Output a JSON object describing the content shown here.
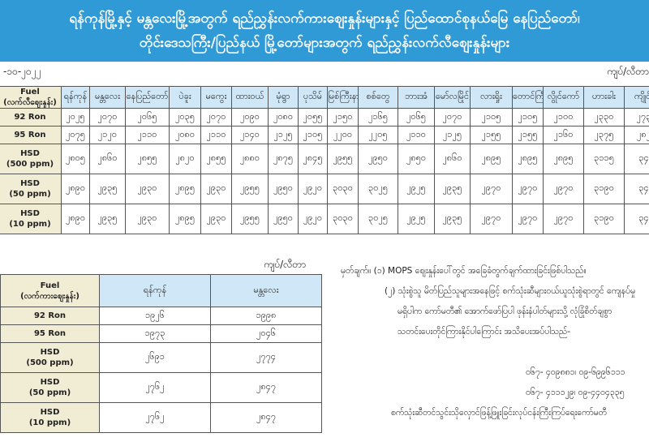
{
  "header": {
    "line1": "ရန်ကုန်မြို့နှင့် မန္တလေးမြို့အတွက် ရည်ညွှန်းလက်ကားစျေးနှုန်းများနှင့် ပြည်ထောင်စုနယ်မြေ နေပြည်တော်၊",
    "line2": "တိုင်းဒေသကြီး/ပြည်နယ် မြို့တော်များအတွက် ရည်ညွှန်းလက်လီစျေးနှုန်းများ"
  },
  "date": "-၁၀-၂၀၂၂",
  "unit": "ကျပ်/လီတာ",
  "retail": {
    "corner": {
      "l1": "Fuel",
      "l2": "(လက်လီစျေးနှုန်း)"
    },
    "cities": [
      "ရန်ကုန်",
      "မန္တလေး",
      "နေပြည်တော်",
      "ပဲခူး",
      "မကွေး",
      "ထားဝယ်",
      "မုံရွာ",
      "ပုသိမ်",
      "မြစ်ကြီးနား",
      "စစ်တွေ",
      "ဘားအံ",
      "မော်လမြိုင်",
      "လားရှိုး",
      "တောင်ကြီး",
      "လွိုင်ကော်",
      "ဟားခါး",
      "ကျိုင်း"
    ],
    "rows": [
      {
        "l1": "92 Ron",
        "l2": "",
        "v": [
          "၂၀၂၅",
          "၂၀၇၀",
          "၂၀၆၅",
          "၂၀၃၅",
          "၂၀၇၀",
          "၂၀၉၀",
          "၂၀၈၀",
          "၂၀၅၅",
          "၂၁၅၀",
          "၂၁၆၅",
          "၂၀၆၅",
          "၂၀၇၀",
          "၂၁၀၅",
          "၂၁၀၅",
          "၂၁၀၀",
          "၂၃၃၀",
          "၂၇၃"
        ]
      },
      {
        "l1": "95 Ron",
        "l2": "",
        "v": [
          "၂၀၇၅",
          "၂၁၂၀",
          "၂၁၁၀",
          "၂၀၈၀",
          "၂၁၁၀",
          "၂၁၄၀",
          "၂၁၂၅",
          "၂၁၀၅",
          "၂၂၀၀",
          "၂၂၀၅",
          "၂၁၁၀",
          "၂၁၂၅",
          "၂၁၅၅",
          "၂၁၅၅",
          "၂၁၆၀",
          "၂၃၇၅",
          "၂၈၂"
        ]
      },
      {
        "l1": "HSD",
        "l2": "(500 ppm)",
        "v": [
          "၂၈၀၅",
          "၂၈၆၀",
          "၂၈၅၅",
          "၂၈၂၀",
          "၂၈၅၅",
          "၂၈၈၀",
          "၂၈၇၅",
          "၂၈၄၅",
          "၂၉၅၅",
          "၂၉၅၀",
          "၂၈၅၀",
          "၂၈၆၀",
          "၂၈၉၅",
          "၂၈၉၅",
          "၂၈၉၅",
          "၃၁၁၅",
          "၃၄"
        ]
      },
      {
        "l1": "HSD",
        "l2": "(50 ppm)",
        "v": [
          "၂၈၉၀",
          "၂၉၃၅",
          "၂၉၃၀",
          "၂၈၉၅",
          "၂၉၃၀",
          "၂၉၅၅",
          "၂၉၅၀",
          "၂၉၂၀",
          "၃၀၃၀",
          "၃၀၂၅",
          "၂၉၂၅",
          "၂၉၃၅",
          "၂၉၇၀",
          "၂၉၇၀",
          "၂၉၇၀",
          "၃၁၉၀",
          "၃၄"
        ]
      },
      {
        "l1": "HSD",
        "l2": "(10 ppm)",
        "v": [
          "၂၈၉၀",
          "၂၉၃၅",
          "၂၉၃၀",
          "၂၈၉၅",
          "၂၉၃၀",
          "၂၉၅၅",
          "၂၉၅၀",
          "၂၉၂၀",
          "၃၀၃၀",
          "၃၀၂၅",
          "၂၉၂၅",
          "၂၉၃၅",
          "၂၉၇၀",
          "၂၉၇၀",
          "၂၉၇၀",
          "၃၁၉၀",
          "၃၄"
        ]
      }
    ]
  },
  "wholesale": {
    "corner": {
      "l1": "Fuel",
      "l2": "(လက်ကားစျေးနှုန်း)"
    },
    "cities": [
      "ရန်ကုန်",
      "မန္တလေး"
    ],
    "rows": [
      {
        "l1": "92 Ron",
        "l2": "",
        "v": [
          "၁၉၂၆",
          "၁၉၉၈"
        ]
      },
      {
        "l1": "95 Ron",
        "l2": "",
        "v": [
          "၁၉၇၃",
          "၂၀၄၆"
        ]
      },
      {
        "l1": "HSD",
        "l2": "(500 ppm)",
        "v": [
          "၂၆၉၁",
          "၂၇၇၄"
        ]
      },
      {
        "l1": "HSD",
        "l2": "(50 ppm)",
        "v": [
          "၂၇၆၂",
          "၂၈၄၇"
        ]
      },
      {
        "l1": "HSD",
        "l2": "(10 ppm)",
        "v": [
          "၂၇၆၂",
          "၂၈၄၇"
        ]
      }
    ]
  },
  "notes": {
    "n1": "မှတ်ချက်။ (၁)  MOPS စျေးနှုန်းပေါ်တွင် အခြေခံတွက်ချက်ထားခြင်းဖြစ်ပါသည်။",
    "n2a": "(၂)  သုံးစွဲသူ မိတ်ပြည်သူများအနေဖြင့် စက်သုံးဆီများဝယ်ယူသုံးစွဲရာတွင် ကျေနပ်မှု",
    "n2b": "မရှိပါက  ကော်မတီ၏ အောက်ဖော်ပြပါ ဖုန်းနံပါတ်များသို့ လုံခြုံစိတ်ချစွာ",
    "n2c": "သတင်းပေးတိုင်ကြားနိုင်ပါကြောင်း အသိပေးအပ်ပါသည်-",
    "phone1": "၀၆၇- ၄၀၉၈၈၁၊ ၀၉-၆၉၉၆၁၁၁",
    "phone2": "၀၆၇- ၄၁၁၁၂၉၊ ၀၉-၄၄၀၄၃၃၅",
    "footer": "စက်သုံးဆီတင်သွင်းသိုလှောင်ဖြန့်ဖြူးခြင်းလုပ်ငန်းကြီးကြပ်ရေးကော်မတီ"
  }
}
